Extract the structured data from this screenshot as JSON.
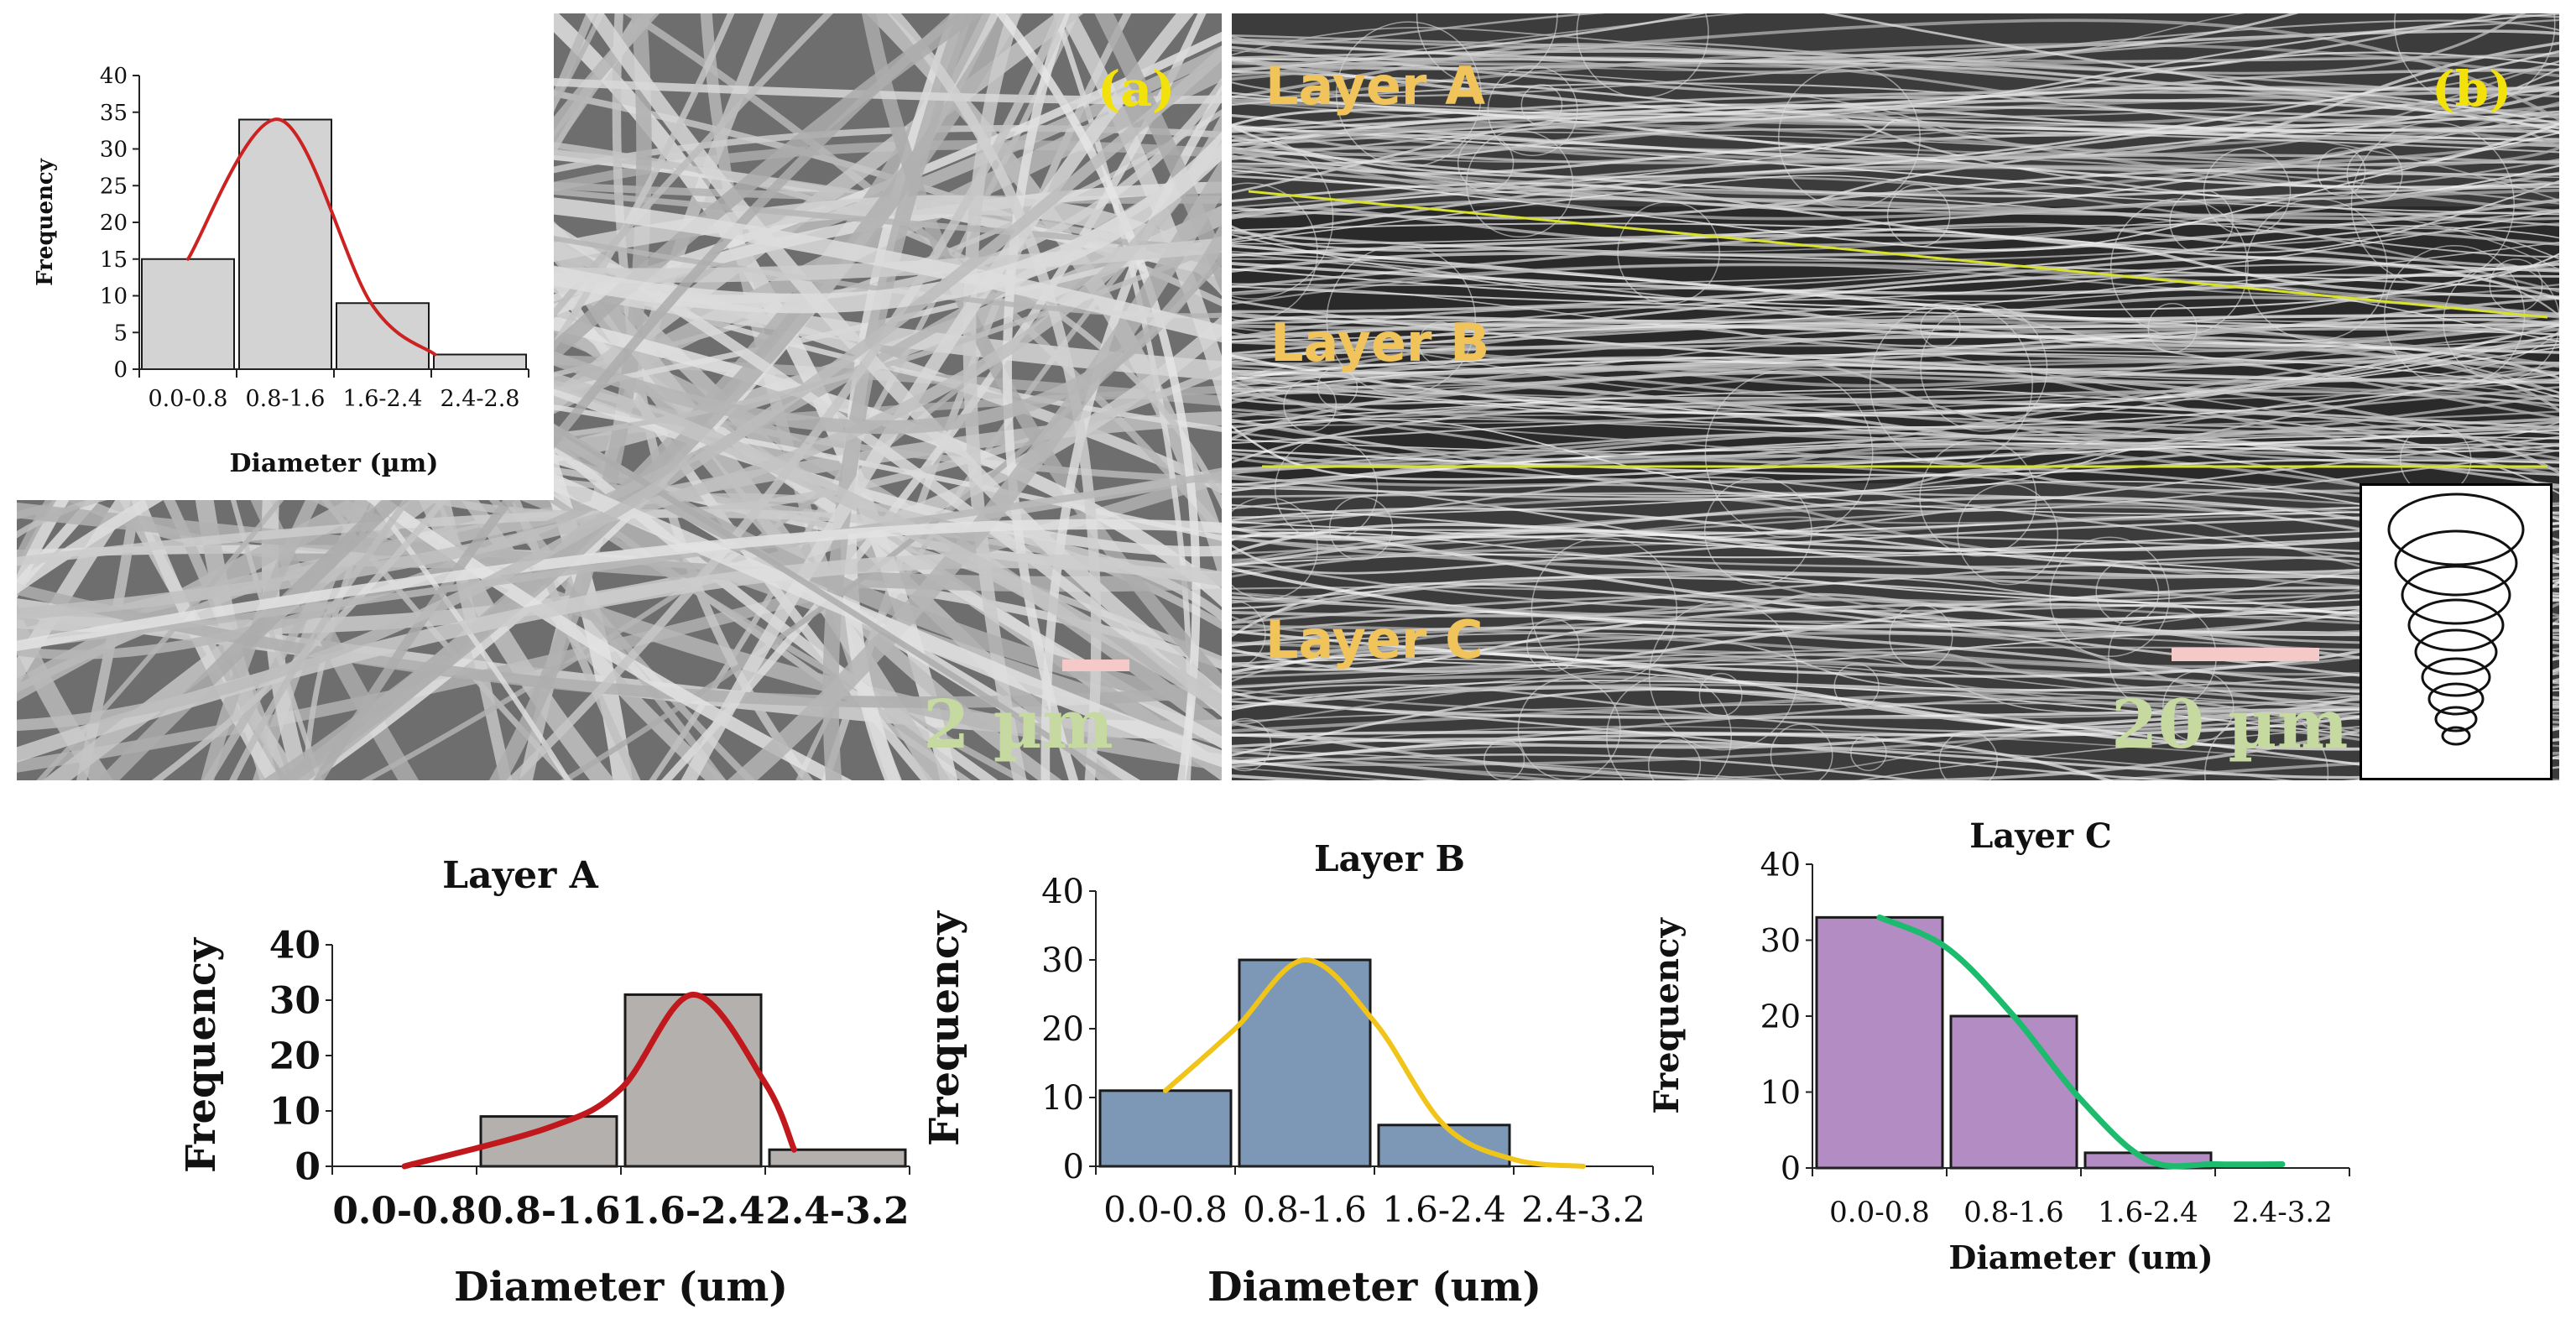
{
  "panels": {
    "a": {
      "label": "(a)",
      "scale_bar": "2 µm"
    },
    "b": {
      "label": "(b)",
      "scale_bar": "20 µm",
      "layers": [
        "Layer A",
        "Layer B",
        "Layer C"
      ],
      "inset_icon": "conical-spiral-icon"
    }
  },
  "colors": {
    "label_yellow": "#f2e10a",
    "layer_label": "#f0c45a",
    "scale_text": "#c5d9a0",
    "scale_bar": "#f4c9c7",
    "boundary_line": "#d8e030"
  },
  "chart_data": [
    {
      "id": "inset-a",
      "type": "bar",
      "title": "",
      "categories": [
        "0.0-0.8",
        "0.8-1.6",
        "1.6-2.4",
        "2.4-2.8"
      ],
      "values": [
        15,
        34,
        9,
        2
      ],
      "xlabel": "Diameter (µm)",
      "ylabel": "Frequency",
      "ylim": [
        0,
        40
      ],
      "yticks": [
        0,
        5,
        10,
        15,
        20,
        25,
        30,
        35,
        40
      ],
      "bar_color": "#d3d3d3",
      "curve_color": "#cc2222",
      "curve": [
        [
          0.0,
          15
        ],
        [
          1.0,
          34
        ],
        [
          2.0,
          9
        ],
        [
          2.7,
          2
        ]
      ]
    },
    {
      "id": "layer-a",
      "type": "bar",
      "title": "Layer A",
      "categories": [
        "0.0-0.8",
        "0.8-1.6",
        "1.6-2.4",
        "2.4-3.2"
      ],
      "values": [
        0,
        9,
        31,
        3
      ],
      "xlabel": "Diameter (um)",
      "ylabel": "Frequency",
      "ylim": [
        0,
        40
      ],
      "yticks": [
        0,
        10,
        20,
        30,
        40
      ],
      "bar_color": "#b4b0ad",
      "curve_color": "#c0181c",
      "curve": [
        [
          0.0,
          0
        ],
        [
          1.0,
          7
        ],
        [
          1.5,
          14
        ],
        [
          2.0,
          31
        ],
        [
          2.5,
          15
        ],
        [
          2.7,
          3
        ]
      ]
    },
    {
      "id": "layer-b",
      "type": "bar",
      "title": "Layer B",
      "categories": [
        "0.0-0.8",
        "0.8-1.6",
        "1.6-2.4",
        "2.4-3.2"
      ],
      "values": [
        11,
        30,
        6,
        0
      ],
      "xlabel": "Diameter (um)",
      "ylabel": "Frequency",
      "ylim": [
        0,
        40
      ],
      "yticks": [
        0,
        10,
        20,
        30,
        40
      ],
      "bar_color": "#7d98b6",
      "curve_color": "#f0c419",
      "curve": [
        [
          0.0,
          11
        ],
        [
          0.5,
          20
        ],
        [
          1.0,
          30
        ],
        [
          1.5,
          21
        ],
        [
          2.0,
          6
        ],
        [
          2.5,
          1
        ],
        [
          3.0,
          0
        ]
      ]
    },
    {
      "id": "layer-c",
      "type": "bar",
      "title": "Layer C",
      "categories": [
        "0.0-0.8",
        "0.8-1.6",
        "1.6-2.4",
        "2.4-3.2"
      ],
      "values": [
        33,
        20,
        2,
        0
      ],
      "xlabel": "Diameter (um)",
      "ylabel": "Frequency",
      "ylim": [
        0,
        40
      ],
      "yticks": [
        0,
        10,
        20,
        30,
        40
      ],
      "bar_color": "#b48cc4",
      "curve_color": "#1dbb6e",
      "curve": [
        [
          0.0,
          33
        ],
        [
          0.5,
          29
        ],
        [
          1.0,
          20
        ],
        [
          1.5,
          9
        ],
        [
          2.0,
          1
        ],
        [
          2.5,
          0.5
        ],
        [
          3.0,
          0.5
        ]
      ]
    }
  ]
}
